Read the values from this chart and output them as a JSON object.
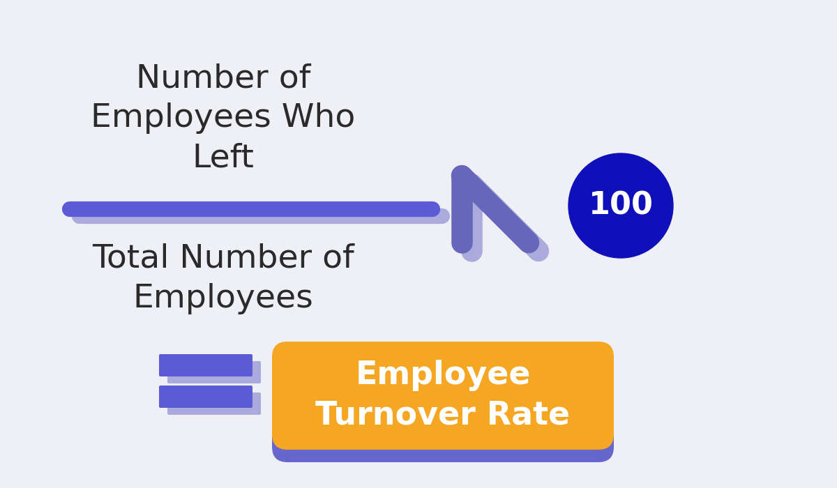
{
  "background_color": "#eef0f5",
  "numerator_text": "Number of\nEmployees Who\nLeft",
  "denominator_text": "Total Number of\nEmployees",
  "hundred_text": "100",
  "result_text": "Employee\nTurnover Rate",
  "text_color": "#2a2a2a",
  "line_color_main": "#5b5bd6",
  "line_color_shadow": "#aaaadd",
  "x_color_main": "#6666bb",
  "x_color_shadow": "#aaaadd",
  "circle_color": "#1010bb",
  "circle_text_color": "#ffffff",
  "equals_color_main": "#5b5bd6",
  "equals_color_shadow": "#aaaadd",
  "button_color": "#f5a623",
  "button_text_color": "#ffffff",
  "button_shadow_color": "#6666cc",
  "fig_width": 12.0,
  "fig_height": 7.0,
  "dpi": 100
}
